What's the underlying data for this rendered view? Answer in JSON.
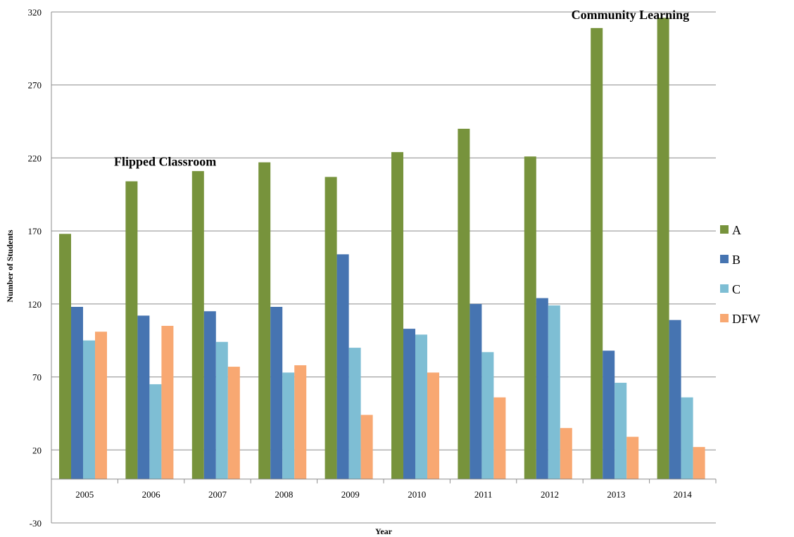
{
  "chart_data": {
    "type": "bar",
    "categories": [
      "2005",
      "2006",
      "2007",
      "2008",
      "2009",
      "2010",
      "2011",
      "2012",
      "2013",
      "2014"
    ],
    "series": [
      {
        "name": "A",
        "color": "#77933c",
        "values": [
          168,
          204,
          211,
          217,
          207,
          224,
          240,
          221,
          309,
          316
        ]
      },
      {
        "name": "B",
        "color": "#4674b1",
        "values": [
          118,
          112,
          115,
          118,
          154,
          103,
          120,
          124,
          88,
          109
        ]
      },
      {
        "name": "C",
        "color": "#7ebed4",
        "values": [
          95,
          65,
          94,
          73,
          90,
          99,
          87,
          119,
          66,
          56
        ]
      },
      {
        "name": "DFW",
        "color": "#f8a872",
        "values": [
          101,
          105,
          77,
          78,
          44,
          73,
          56,
          35,
          29,
          22
        ]
      }
    ],
    "yticks": [
      -30,
      20,
      70,
      120,
      170,
      220,
      270,
      320
    ],
    "ylim": [
      -30,
      320
    ],
    "xlabel": "Year",
    "ylabel": "Number of Students",
    "annotations": [
      {
        "text": "Flipped Classroom",
        "category": "2006"
      },
      {
        "text": "Community Learning",
        "category": "2013"
      }
    ],
    "grid": true,
    "legend_position": "right"
  }
}
